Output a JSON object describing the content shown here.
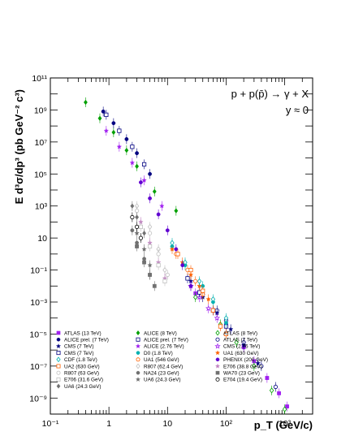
{
  "chart_data": {
    "type": "scatter",
    "xscale": "log",
    "yscale": "log",
    "xlim": [
      0.1,
      3000
    ],
    "ylim": [
      1e-10,
      100000000000.0
    ],
    "xlabel": "p_T (GeV/c)",
    "ylabel": "E d³σ/dp³ (pb GeV⁻² c³)",
    "annotations": [
      "p + p(p̄) → γ + X",
      "y ≈ 0"
    ],
    "x_tick_labels": [
      "10⁻¹",
      "1",
      "10",
      "10²",
      "10³"
    ],
    "y_tick_labels": [
      "10⁻⁹",
      "10⁻⁷",
      "10⁻⁵",
      "10⁻³",
      "10⁻¹",
      "10",
      "10³",
      "10⁵",
      "10⁷",
      "10⁹",
      "10¹¹"
    ],
    "legend_placement": "bottom",
    "series": [
      {
        "name": "ATLAS (13 TeV)",
        "color": "#a020f0",
        "marker": "square",
        "points": [
          [
            30,
            0.0035
          ],
          [
            60,
            0.0003
          ],
          [
            100,
            4e-05
          ],
          [
            200,
            1.5e-06
          ],
          [
            300,
            2e-07
          ],
          [
            500,
            1.8e-08
          ],
          [
            800,
            2e-09
          ],
          [
            1100,
            3e-10
          ]
        ]
      },
      {
        "name": "ALICE (8 TeV)",
        "color": "#00a000",
        "marker": "diamond",
        "points": [
          [
            0.4,
            3000000000.0
          ],
          [
            0.7,
            300000000.0
          ],
          [
            1.2,
            40000000.0
          ],
          [
            2,
            3000000.0
          ],
          [
            3,
            300000.0
          ],
          [
            6,
            8000.0
          ],
          [
            14,
            500
          ]
        ]
      },
      {
        "name": "ATLAS (8 TeV)",
        "color": "#00a000",
        "marker": "diamond-open",
        "points": [
          [
            30,
            0.002
          ],
          [
            80,
            4e-05
          ],
          [
            150,
            3e-06
          ],
          [
            300,
            1e-07
          ],
          [
            600,
            3e-09
          ],
          [
            1000,
            2e-10
          ]
        ]
      },
      {
        "name": "ALICE prel. (7 TeV)",
        "color": "#000080",
        "marker": "circle",
        "points": [
          [
            0.8,
            800000000.0
          ],
          [
            1.2,
            150000000.0
          ],
          [
            2,
            15000000.0
          ],
          [
            3,
            2000000.0
          ],
          [
            5,
            100000.0
          ]
        ]
      },
      {
        "name": "ALICE prel. (7 TeV)",
        "color": "#000080",
        "marker": "square-open",
        "points": [
          [
            0.9,
            500000000.0
          ],
          [
            1.5,
            50000000.0
          ],
          [
            2.5,
            5000000.0
          ],
          [
            4,
            400000.0
          ]
        ]
      },
      {
        "name": "ATLAS (7 TeV)",
        "color": "#000080",
        "marker": "circle-open",
        "points": [
          [
            40,
            0.003
          ],
          [
            70,
            0.0003
          ],
          [
            100,
            7e-05
          ],
          [
            200,
            3e-06
          ],
          [
            400,
            1e-07
          ],
          [
            700,
            5e-09
          ]
        ]
      },
      {
        "name": "CMS (7 TeV)",
        "color": "#000080",
        "marker": "star",
        "points": [
          [
            25,
            0.02
          ],
          [
            40,
            0.002
          ],
          [
            70,
            0.0002
          ],
          [
            120,
            2e-05
          ],
          [
            200,
            2e-06
          ],
          [
            350,
            1.5e-07
          ]
        ]
      },
      {
        "name": "ALICE (2.76 TeV)",
        "color": "#a020f0",
        "marker": "star",
        "points": [
          [
            0.9,
            50000000.0
          ],
          [
            1.5,
            5000000.0
          ],
          [
            2.5,
            500000.0
          ],
          [
            4,
            40000.0
          ],
          [
            8,
            1000.0
          ]
        ]
      },
      {
        "name": "CMS (2.76 TeV)",
        "color": "#a020f0",
        "marker": "star-open",
        "points": [
          [
            25,
            0.01
          ],
          [
            35,
            0.002
          ],
          [
            50,
            0.0004
          ],
          [
            70,
            0.0001
          ]
        ]
      },
      {
        "name": "CMS (7 TeV)",
        "color": "#000080",
        "marker": "square-open",
        "points": [
          [
            22,
            0.03
          ],
          [
            35,
            0.004
          ],
          [
            60,
            0.0003
          ],
          [
            100,
            3e-05
          ]
        ]
      },
      {
        "name": "D0 (1.8 TeV)",
        "color": "#00b0b0",
        "marker": "circle",
        "points": [
          [
            12,
            3
          ],
          [
            20,
            0.2
          ],
          [
            40,
            0.01
          ],
          [
            60,
            0.001
          ],
          [
            100,
            5e-05
          ]
        ]
      },
      {
        "name": "UA1 (630 GeV)",
        "color": "#ff6000",
        "marker": "star",
        "points": [
          [
            12,
            2
          ],
          [
            18,
            0.3
          ],
          [
            25,
            0.05
          ],
          [
            35,
            0.01
          ],
          [
            50,
            0.0015
          ]
        ]
      },
      {
        "name": "CDF (1.8 TeV)",
        "color": "#00b0b0",
        "marker": "diamond-open",
        "points": [
          [
            12,
            5
          ],
          [
            20,
            0.3
          ],
          [
            35,
            0.02
          ],
          [
            60,
            0.0015
          ],
          [
            100,
            0.0001
          ]
        ]
      },
      {
        "name": "UA1 (546 GeV)",
        "color": "#ff6000",
        "marker": "circle-open",
        "points": [
          [
            14,
            1
          ],
          [
            22,
            0.1
          ],
          [
            30,
            0.02
          ],
          [
            40,
            0.003
          ]
        ]
      },
      {
        "name": "PHENIX (200 GeV)",
        "color": "#6000d0",
        "marker": "circle",
        "points": [
          [
            3.5,
            30000.0
          ],
          [
            5,
            3000.0
          ],
          [
            7,
            300.0
          ],
          [
            10,
            30
          ],
          [
            14,
            2
          ],
          [
            18,
            0.2
          ],
          [
            25,
            0.01
          ]
        ]
      },
      {
        "name": "UA2 (630 GeV)",
        "color": "#ff6000",
        "marker": "square-open",
        "points": [
          [
            15,
            1
          ],
          [
            25,
            0.1
          ],
          [
            40,
            0.005
          ],
          [
            60,
            0.0003
          ],
          [
            80,
            3e-05
          ],
          [
            100,
            1e-05
          ]
        ]
      },
      {
        "name": "R807 (62.4 GeV)",
        "color": "#c0c0c0",
        "marker": "diamond-open",
        "points": [
          [
            3,
            1000.0
          ],
          [
            5,
            50
          ],
          [
            7,
            2
          ],
          [
            9,
            0.1
          ]
        ]
      },
      {
        "name": "E706 (38.8 GeV)",
        "color": "#c080c0",
        "marker": "star",
        "points": [
          [
            3.5,
            100
          ],
          [
            5,
            5
          ],
          [
            7,
            0.3
          ],
          [
            9,
            0.03
          ]
        ]
      },
      {
        "name": "R807 (63 GeV)",
        "color": "#c0c0c0",
        "marker": "circle-open",
        "points": [
          [
            3,
            500
          ],
          [
            5,
            20
          ],
          [
            7,
            1
          ],
          [
            10,
            0.05
          ]
        ]
      },
      {
        "name": "NA24 (23 GeV)",
        "color": "#707070",
        "marker": "circle",
        "points": [
          [
            2.5,
            30
          ],
          [
            3,
            5
          ],
          [
            4,
            0.5
          ],
          [
            5,
            0.05
          ]
        ]
      },
      {
        "name": "WA70 (23 GeV)",
        "color": "#707070",
        "marker": "square",
        "points": [
          [
            3,
            3
          ],
          [
            4,
            0.3
          ],
          [
            5,
            0.05
          ],
          [
            6,
            0.01
          ]
        ]
      },
      {
        "name": "E706 (31.6 GeV)",
        "color": "#c0c0c0",
        "marker": "square-open",
        "points": [
          [
            3.5,
            50
          ],
          [
            5,
            3
          ],
          [
            7,
            0.2
          ],
          [
            9,
            0.02
          ]
        ]
      },
      {
        "name": "UA6 (24.3 GeV)",
        "color": "#707070",
        "marker": "star",
        "points": [
          [
            3,
            20
          ],
          [
            4,
            2
          ],
          [
            5,
            0.2
          ]
        ]
      },
      {
        "name": "E704 (19.4 GeV)",
        "color": "#000000",
        "marker": "circle-open",
        "points": [
          [
            2.5,
            200
          ],
          [
            3,
            50
          ],
          [
            3.5,
            10
          ]
        ]
      },
      {
        "name": "UA6 (24.3 GeV)",
        "color": "#707070",
        "marker": "diamond",
        "points": [
          [
            2.5,
            1000.0
          ],
          [
            3,
            200
          ],
          [
            4,
            20
          ]
        ]
      }
    ]
  }
}
